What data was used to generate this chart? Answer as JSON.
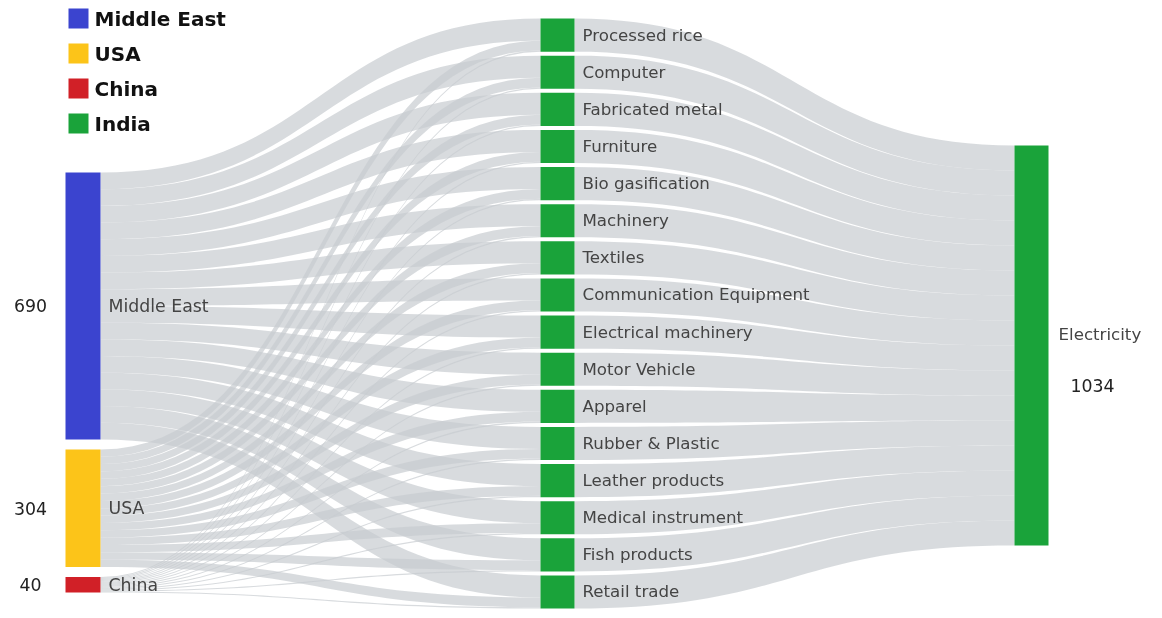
{
  "chart_data": {
    "type": "other",
    "categories": [
      "Middle East",
      "USA",
      "China",
      "Processed rice",
      "Computer",
      "Fabricated metal",
      "Furniture",
      "Bio gasification",
      "Machinery",
      "Textiles",
      "Communication Equipment",
      "Electrical machinery",
      "Motor Vehicle",
      "Apparel",
      "Rubber & Plastic",
      "Leather products",
      "Medical instrument",
      "Fish products",
      "Retail trade",
      "Electricity"
    ],
    "series": [
      {
        "name": "Middle East",
        "color": "#3b44cf",
        "values": [
          690,
          null,
          null,
          null,
          null,
          null,
          null,
          null,
          null,
          null,
          null,
          null,
          null,
          null,
          null,
          null,
          null,
          null,
          null,
          null
        ]
      },
      {
        "name": "USA",
        "color": "#fcc419",
        "values": [
          null,
          304,
          null,
          null,
          null,
          null,
          null,
          null,
          null,
          null,
          null,
          null,
          null,
          null,
          null,
          null,
          null,
          null,
          null,
          null
        ]
      },
      {
        "name": "China",
        "color": "#d12027",
        "values": [
          null,
          null,
          40,
          null,
          null,
          null,
          null,
          null,
          null,
          null,
          null,
          null,
          null,
          null,
          null,
          null,
          null,
          null,
          null,
          null
        ]
      },
      {
        "name": "India",
        "color": "#1aa33a",
        "values": [
          null,
          null,
          null,
          null,
          null,
          null,
          null,
          null,
          null,
          null,
          null,
          null,
          null,
          null,
          null,
          null,
          null,
          null,
          null,
          1034
        ]
      }
    ],
    "legend": "top left",
    "data_labels": true
  }
}
